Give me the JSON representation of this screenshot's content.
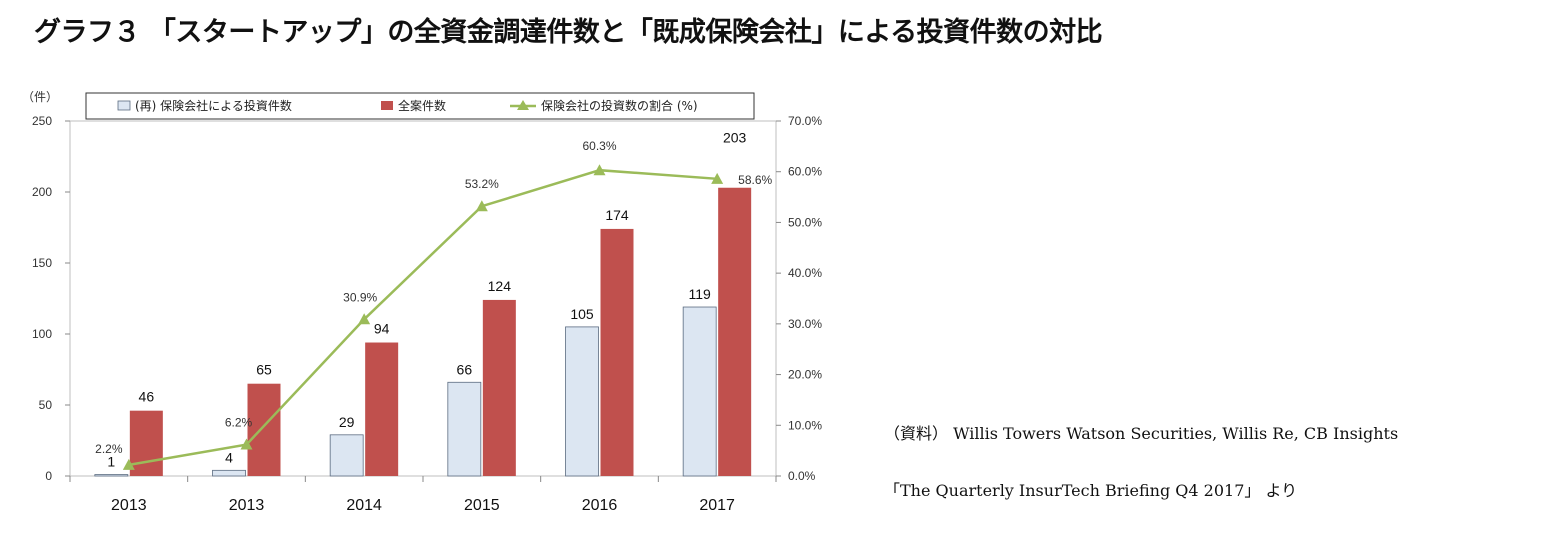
{
  "title": "グラフ３ 「スタートアップ」の全資金調達件数と「既成保険会社」による投資件数の対比",
  "source": {
    "line1": "（資料） Willis Towers Watson Securities, Willis Re, CB Insights",
    "line2": "「The Quarterly InsurTech Briefing Q4 2017」 より"
  },
  "chart_data": {
    "type": "bar",
    "categories": [
      "2013",
      "2013",
      "2014",
      "2015",
      "2016",
      "2017"
    ],
    "series": [
      {
        "name": "(再) 保険会社による投資件数",
        "kind": "bar",
        "color": "#dce6f2",
        "values": [
          1,
          4,
          29,
          66,
          105,
          119
        ]
      },
      {
        "name": "全案件数",
        "kind": "bar",
        "color": "#c0504d",
        "values": [
          46,
          65,
          94,
          124,
          174,
          203
        ]
      },
      {
        "name": "保険会社の投資数の割合 (%)",
        "kind": "line",
        "axis": "right",
        "color": "#9bbb59",
        "values": [
          2.2,
          6.2,
          30.9,
          53.2,
          60.3,
          58.6
        ],
        "labels": [
          "2.2%",
          "6.2%",
          "30.9%",
          "53.2%",
          "60.3%",
          "58.6%"
        ]
      }
    ],
    "y_left": {
      "unit": "（件）",
      "ticks": [
        "0",
        "50",
        "100",
        "150",
        "200",
        "250"
      ],
      "range": [
        0,
        250
      ]
    },
    "y_right": {
      "ticks": [
        "0.0%",
        "10.0%",
        "20.0%",
        "30.0%",
        "40.0%",
        "50.0%",
        "60.0%",
        "70.0%"
      ],
      "range": [
        0,
        70
      ]
    },
    "legend_position": "top",
    "grid": false
  }
}
